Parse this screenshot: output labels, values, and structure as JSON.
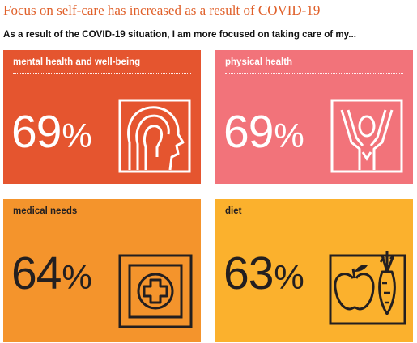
{
  "header": {
    "title": "Focus on self-care has increased as a result of COVID-19",
    "subtitle": "As a result of the COVID-19 situation, I am more focused on taking care of my..."
  },
  "cards": [
    {
      "label": "mental health and well-being",
      "value": "69",
      "unit": "%",
      "icon": "head-silhouette-icon",
      "bg": "#e5552f",
      "fg": "#ffffff"
    },
    {
      "label": "physical health",
      "value": "69",
      "unit": "%",
      "icon": "person-arms-raised-icon",
      "bg": "#f2737a",
      "fg": "#ffffff"
    },
    {
      "label": "medical needs",
      "value": "64",
      "unit": "%",
      "icon": "medical-cross-icon",
      "bg": "#f4942c",
      "fg": "#231f20"
    },
    {
      "label": "diet",
      "value": "63",
      "unit": "%",
      "icon": "apple-carrot-icon",
      "bg": "#fbb12d",
      "fg": "#231f20"
    }
  ]
}
